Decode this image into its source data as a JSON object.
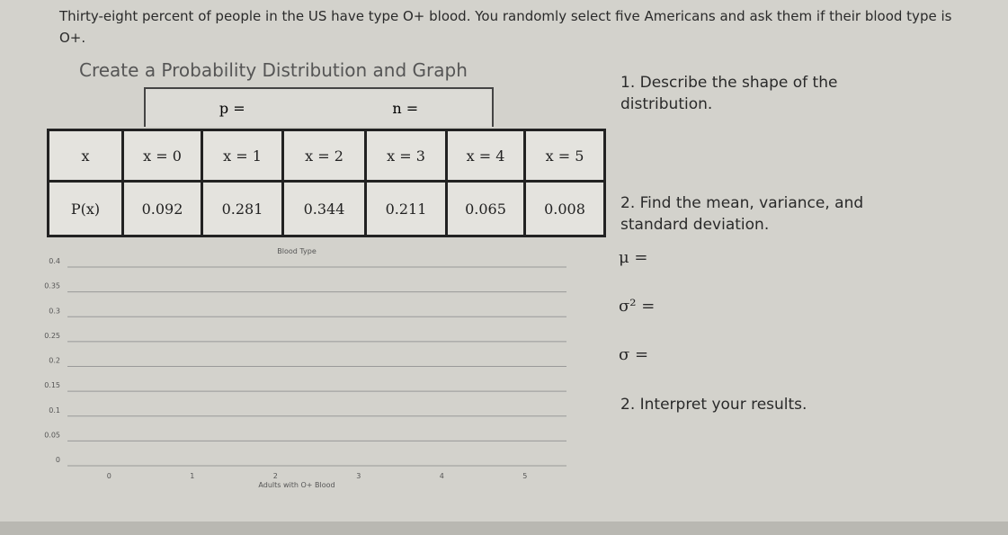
{
  "intro": "Thirty-eight percent of people in the US have type O+ blood. You randomly select five Americans and ask them if their blood type is O+.",
  "heading": "Create a Probability Distribution and Graph",
  "params": [
    "p =",
    "n ="
  ],
  "table": {
    "header": [
      "x",
      "x = 0",
      "x = 1",
      "x = 2",
      "x = 3",
      "x = 4",
      "x = 5"
    ],
    "rows": [
      [
        "P(x)",
        "0.092",
        "0.281",
        "0.344",
        "0.211",
        "0.065",
        "0.008"
      ]
    ]
  },
  "graph": {
    "title": "Blood Type",
    "x_label": "Adults with O+ Blood",
    "xticks": [
      0,
      1,
      2,
      3,
      4,
      5
    ],
    "ylim": [
      0,
      0.4
    ],
    "yticks": [
      0,
      0.05,
      0.1,
      0.15,
      0.2,
      0.25,
      0.3,
      0.35,
      0.4
    ]
  },
  "questions": {
    "q1": "1. Describe the shape of the distribution.",
    "q2": "2. Find the mean, variance, and standard deviation.",
    "mean": "μ =",
    "variance": "σ² =",
    "sd": "σ =",
    "q3": "2. Interpret your results."
  }
}
